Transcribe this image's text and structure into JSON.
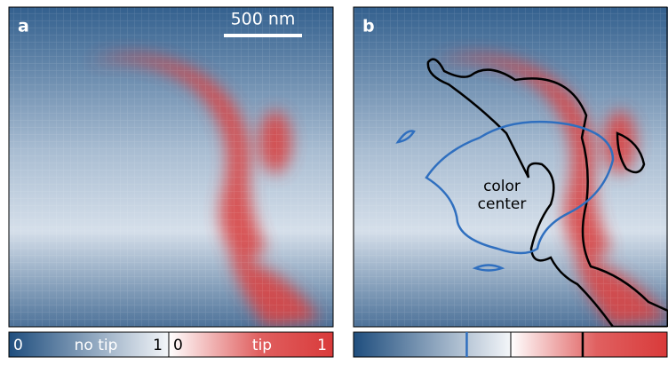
{
  "panels": [
    {
      "label": "a",
      "scalebar": "500 nm"
    },
    {
      "label": "b",
      "annotation": "color center"
    }
  ],
  "colorbar_a": {
    "no_tip": {
      "min": "0",
      "label": "no tip",
      "max": "1"
    },
    "tip": {
      "min": "0",
      "label": "tip",
      "max": "1"
    }
  },
  "colorbar_b": {
    "no_tip_level": 0.72,
    "tip_level": 0.46
  }
}
